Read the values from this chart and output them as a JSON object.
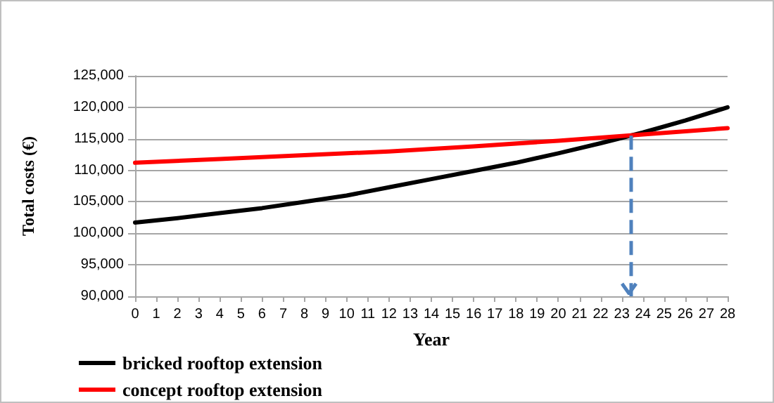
{
  "chart_data": {
    "type": "line",
    "xlabel": "Year",
    "ylabel": "Total costs (€)",
    "xlim": [
      0,
      28
    ],
    "xticks": [
      0,
      1,
      2,
      3,
      4,
      5,
      6,
      7,
      8,
      9,
      10,
      11,
      12,
      13,
      14,
      15,
      16,
      17,
      18,
      19,
      20,
      21,
      22,
      23,
      24,
      25,
      26,
      27,
      28
    ],
    "ylim": [
      90000,
      125000
    ],
    "yticks": [
      {
        "value": 90000,
        "label": "90,000"
      },
      {
        "value": 95000,
        "label": "95,000"
      },
      {
        "value": 100000,
        "label": "100,000"
      },
      {
        "value": 105000,
        "label": "105,000"
      },
      {
        "value": 110000,
        "label": "110,000"
      },
      {
        "value": 115000,
        "label": "115,000"
      },
      {
        "value": 120000,
        "label": "120,000"
      },
      {
        "value": 125000,
        "label": "125,000"
      }
    ],
    "grid": "y",
    "legend": "bottom left",
    "marker": "none",
    "line_style": "solid",
    "series": [
      {
        "name": "bricked rooftop extension",
        "color": "#000000",
        "x": [
          0,
          2,
          4,
          6,
          8,
          10,
          12,
          14,
          16,
          18,
          20,
          22,
          24,
          26,
          28
        ],
        "values": [
          101700,
          102400,
          103200,
          104000,
          105000,
          106000,
          107300,
          108600,
          109900,
          111200,
          112700,
          114300,
          116000,
          117900,
          120000
        ]
      },
      {
        "name": "concept rooftop extension",
        "color": "#ff0000",
        "x": [
          0,
          4,
          8,
          12,
          16,
          20,
          24,
          28
        ],
        "values": [
          111200,
          111800,
          112400,
          113000,
          113800,
          114700,
          115700,
          116700
        ]
      }
    ],
    "ref_lines": [
      {
        "axis": "x",
        "value": 23.4,
        "color": "#4f81bd",
        "line_style": "dashed"
      }
    ]
  }
}
